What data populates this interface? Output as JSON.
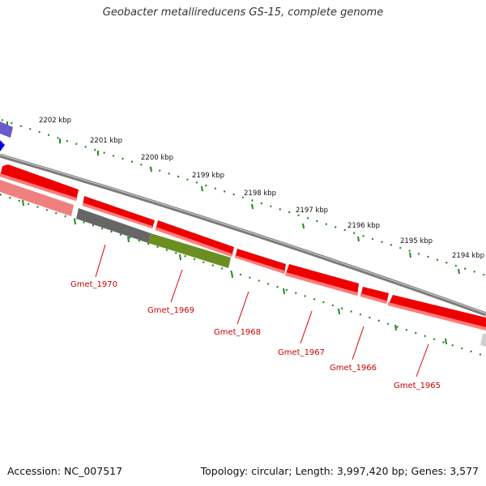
{
  "title": "Geobacter metallireducens GS-15, complete genome",
  "footer": {
    "accession": "Accession: NC_007517",
    "summary": "Topology: circular; Length: 3,997,420 bp; Genes: 3,577"
  },
  "ruler_labels": [
    "2202 kbp",
    "2201 kbp",
    "2200 kbp",
    "2199 kbp",
    "2198 kbp",
    "2197 kbp",
    "2196 kbp",
    "2195 kbp",
    "2194 kbp"
  ],
  "gene_labels": [
    "Gmet_1970",
    "Gmet_1969",
    "Gmet_1968",
    "Gmet_1967",
    "Gmet_1966",
    "Gmet_1965"
  ],
  "colors": {
    "gene_forward": "#ff0000",
    "gene_faded": "#f08080",
    "gene_gray": "#666666",
    "gene_green": "#6b8e23",
    "gene_blue": "#0000ee",
    "gene_purple": "#6a5acd",
    "backbone": "#808080",
    "ticks": "#1e8b1e",
    "label_red": "#cc0000"
  }
}
